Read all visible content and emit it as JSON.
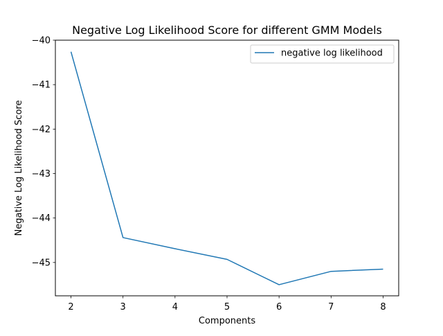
{
  "chart_data": {
    "type": "line",
    "title": "Negative Log Likelihood Score for different GMM Models",
    "xlabel": "Components",
    "ylabel": "Negative Log Likelihood Score",
    "xlim": [
      1.7,
      8.3
    ],
    "ylim": [
      -45.75,
      -40.0
    ],
    "xticks": [
      2,
      3,
      4,
      5,
      6,
      7,
      8
    ],
    "yticks": [
      -40,
      -41,
      -42,
      -43,
      -44,
      -45
    ],
    "ytick_labels": [
      "−40",
      "−41",
      "−42",
      "−43",
      "−44",
      "−45"
    ],
    "grid": false,
    "legend_position": "upper right",
    "series": [
      {
        "name": "negative log likelihood",
        "color": "#1f77b4",
        "x": [
          2,
          3,
          4,
          5,
          6,
          7,
          8
        ],
        "y": [
          -40.26,
          -44.44,
          -44.69,
          -44.93,
          -45.5,
          -45.2,
          -45.15
        ]
      }
    ]
  }
}
